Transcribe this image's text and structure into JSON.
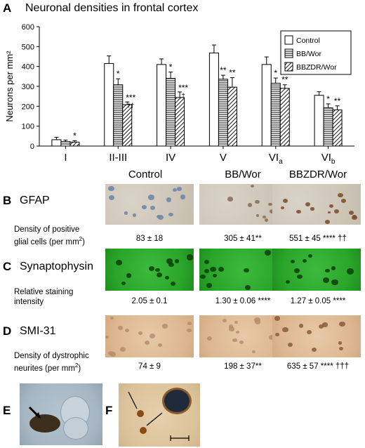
{
  "panels": {
    "a": "A",
    "b": "B",
    "c": "C",
    "d": "D",
    "e": "E",
    "f": "F"
  },
  "chart_data": {
    "type": "bar",
    "title": "Neuronal densities in frontal cortex",
    "ylabel": "Neurons per mm²",
    "ylim": [
      0,
      600
    ],
    "yticks": [
      "0",
      "100",
      "200",
      "300",
      "400",
      "500",
      "600"
    ],
    "categories": [
      "I",
      "II-III",
      "IV",
      "V",
      "VIa",
      "VIb"
    ],
    "category_main": [
      "I",
      "II-III",
      "IV",
      "V",
      "VI",
      "VI"
    ],
    "category_sub": [
      "",
      "",
      "",
      "",
      "a",
      "b"
    ],
    "legend_position": "top-right",
    "series": [
      {
        "name": "Control",
        "values": [
          32,
          415,
          410,
          468,
          410,
          255
        ],
        "errors": [
          12,
          38,
          28,
          40,
          38,
          18
        ],
        "pattern": "white",
        "marks": [
          "",
          "",
          "",
          "",
          "",
          ""
        ]
      },
      {
        "name": "BB/Wor",
        "values": [
          22,
          308,
          340,
          336,
          316,
          192
        ],
        "errors": [
          8,
          30,
          32,
          20,
          26,
          20
        ],
        "pattern": "hstripe",
        "marks": [
          "",
          "*",
          "*",
          "**",
          "*",
          "*"
        ]
      },
      {
        "name": "BBZDR/Wor",
        "values": [
          20,
          208,
          244,
          296,
          290,
          182
        ],
        "errors": [
          7,
          14,
          28,
          48,
          18,
          20
        ],
        "pattern": "dstripe",
        "marks": [
          "*",
          "***\n††",
          "***\n†",
          "**",
          "**",
          "**"
        ]
      }
    ]
  },
  "columns": [
    "Control",
    "BB/Wor",
    "BBZDR/Wor"
  ],
  "rows": {
    "gfap": {
      "label": "GFAP",
      "sub1": "Density of positive",
      "sub2_pre": "glial cells (per mm",
      "sub2_sup": "2",
      "sub2_post": ")",
      "values": [
        {
          "main": "83 ± 18",
          "mark": ""
        },
        {
          "main": "305 ± 41",
          "mark": "**"
        },
        {
          "main": "551 ± 45",
          "mark": "**** ††"
        }
      ]
    },
    "syn": {
      "label": "Synaptophysin",
      "sub1": "Relative staining",
      "sub2": "intensity",
      "values": [
        {
          "main": "2.05 ± 0.1",
          "mark": ""
        },
        {
          "main": "1.30 ± 0.06",
          "mark": "****"
        },
        {
          "main": "1.27 ± 0.05",
          "mark": "****"
        }
      ]
    },
    "smi": {
      "label": "SMI-31",
      "sub1": "Density of dystrophic",
      "sub2_pre": "neurites (per mm",
      "sub2_sup": "2",
      "sub2_post": ")",
      "values": [
        {
          "main": "74 ± 9",
          "mark": ""
        },
        {
          "main": "198 ± 37",
          "mark": "**"
        },
        {
          "main": "635 ± 57",
          "mark": "**** †††"
        }
      ]
    }
  }
}
